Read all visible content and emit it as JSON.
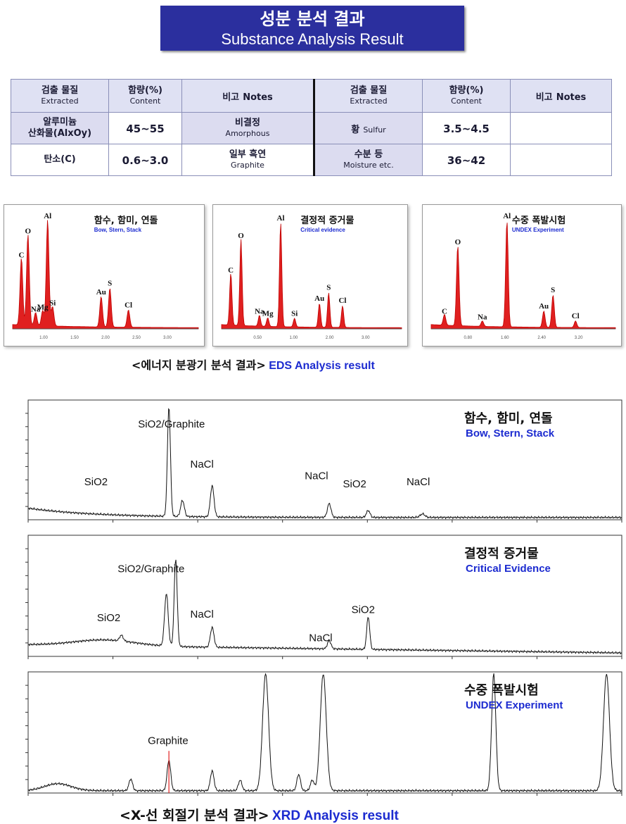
{
  "header": {
    "title_ko": "성분 분석 결과",
    "title_en": "Substance Analysis Result"
  },
  "table": {
    "headers": {
      "extracted_ko": "검출 물질",
      "extracted_en": "Extracted",
      "content_ko": "함량(%)",
      "content_en": "Content",
      "notes_ko": "비고",
      "notes_en": "Notes"
    },
    "rows": [
      {
        "name_ko": "알루미늄",
        "name_ko2": "산화물(AlxOy)",
        "content": "45~55",
        "note_ko": "비결정",
        "note_en": "Amorphous",
        "name2_ko": "황",
        "name2_en": "Sulfur",
        "content2": "3.5~4.5",
        "note2": ""
      },
      {
        "name_ko": "탄소(C)",
        "name_ko2": "",
        "content": "0.6~3.0",
        "note_ko": "일부 흑연",
        "note_en": "Graphite",
        "name2_ko": "수분 등",
        "name2_en": "Moisture etc.",
        "content2": "36~42",
        "note2": ""
      }
    ]
  },
  "eds_caption": {
    "ko": "<에너지 분광기 분석 결과>",
    "en": "EDS Analysis result"
  },
  "xrd_caption": {
    "ko": "<X-선 회절기 분석 결과>",
    "en": "XRD Analysis result"
  },
  "chart_data": [
    {
      "type": "line",
      "id": "eds1",
      "title_ko": "함수, 함미, 연돌",
      "title_en": "Bow, Stern, Stack",
      "tick_labels": [
        "1.00",
        "1.50",
        "2.00",
        "2.50",
        "3.00"
      ],
      "peaks": [
        {
          "label": "C",
          "x": 0.16,
          "h": 0.62
        },
        {
          "label": "O",
          "x": 0.28,
          "h": 0.84
        },
        {
          "label": "Na",
          "x": 0.42,
          "h": 0.12
        },
        {
          "label": "Mg",
          "x": 0.55,
          "h": 0.14
        },
        {
          "label": "Al",
          "x": 0.64,
          "h": 0.98
        },
        {
          "label": "Si",
          "x": 0.73,
          "h": 0.18
        },
        {
          "label": "Au",
          "x": 1.62,
          "h": 0.28
        },
        {
          "label": "S",
          "x": 1.78,
          "h": 0.36
        },
        {
          "label": "Cl",
          "x": 2.12,
          "h": 0.16
        }
      ],
      "xmax": 3.4
    },
    {
      "type": "line",
      "id": "eds2",
      "title_ko": "결정적 증거물",
      "title_en": "Critical evidence",
      "tick_labels": [
        "0.50",
        "1.00",
        "2.00",
        "3.00"
      ],
      "peaks": [
        {
          "label": "C",
          "x": 0.2,
          "h": 0.48
        },
        {
          "label": "O",
          "x": 0.42,
          "h": 0.8
        },
        {
          "label": "Na",
          "x": 0.82,
          "h": 0.1
        },
        {
          "label": "Mg",
          "x": 1.0,
          "h": 0.08
        },
        {
          "label": "Al",
          "x": 1.28,
          "h": 0.96
        },
        {
          "label": "Si",
          "x": 1.58,
          "h": 0.08
        },
        {
          "label": "Au",
          "x": 2.12,
          "h": 0.22
        },
        {
          "label": "S",
          "x": 2.32,
          "h": 0.32
        },
        {
          "label": "Cl",
          "x": 2.62,
          "h": 0.2
        }
      ],
      "xmax": 3.9
    },
    {
      "type": "line",
      "id": "eds3",
      "title_ko": "수중 폭발시험",
      "title_en": "UNDEX Experiment",
      "tick_labels": [
        "0.80",
        "1.60",
        "2.40",
        "3.20"
      ],
      "peaks": [
        {
          "label": "C",
          "x": 0.26,
          "h": 0.1
        },
        {
          "label": "O",
          "x": 0.52,
          "h": 0.74
        },
        {
          "label": "Na",
          "x": 1.0,
          "h": 0.05
        },
        {
          "label": "Al",
          "x": 1.48,
          "h": 0.98
        },
        {
          "label": "Au",
          "x": 2.2,
          "h": 0.15
        },
        {
          "label": "S",
          "x": 2.38,
          "h": 0.3
        },
        {
          "label": "Cl",
          "x": 2.82,
          "h": 0.06
        }
      ],
      "xmax": 3.6
    },
    {
      "type": "line",
      "id": "xrd1",
      "title_ko": "함수, 함미, 연돌",
      "title_en": "Bow, Stern, Stack",
      "xlim": [
        10,
        80
      ],
      "peaks": [
        {
          "x": 26.6,
          "h": 0.95,
          "w": 0.25,
          "label": "SiO2/Graphite"
        },
        {
          "x": 28.2,
          "h": 0.14,
          "w": 0.3
        },
        {
          "x": 31.7,
          "h": 0.27,
          "w": 0.3,
          "label": "NaCl"
        },
        {
          "x": 45.5,
          "h": 0.12,
          "w": 0.3,
          "label": "NaCl"
        },
        {
          "x": 50.1,
          "h": 0.06,
          "w": 0.3,
          "label": "SiO2"
        },
        {
          "x": 56.5,
          "h": 0.03,
          "w": 0.4,
          "label": "NaCl"
        }
      ],
      "labels": [
        {
          "text": "SiO2/Graphite",
          "x": 26.9,
          "y": 0.8
        },
        {
          "text": "SiO2",
          "x": 18.0,
          "y": 0.3
        },
        {
          "text": "NaCl",
          "x": 30.5,
          "y": 0.45
        },
        {
          "text": "NaCl",
          "x": 44.0,
          "y": 0.35
        },
        {
          "text": "SiO2",
          "x": 48.5,
          "y": 0.28
        },
        {
          "text": "NaCl",
          "x": 56.0,
          "y": 0.3
        }
      ]
    },
    {
      "type": "line",
      "id": "xrd2",
      "title_ko": "결정적 증거물",
      "title_en": "Critical Evidence",
      "xlim": [
        10,
        80
      ],
      "peaks": [
        {
          "x": 21.0,
          "h": 0.05,
          "w": 0.3
        },
        {
          "x": 26.3,
          "h": 0.45,
          "w": 0.3
        },
        {
          "x": 27.4,
          "h": 0.75,
          "w": 0.25
        },
        {
          "x": 31.7,
          "h": 0.17,
          "w": 0.3
        },
        {
          "x": 45.5,
          "h": 0.07,
          "w": 0.3
        },
        {
          "x": 50.1,
          "h": 0.28,
          "w": 0.25
        }
      ],
      "labels": [
        {
          "text": "SiO2/Graphite",
          "x": 24.5,
          "y": 0.72
        },
        {
          "text": "SiO2",
          "x": 19.5,
          "y": 0.3
        },
        {
          "text": "NaCl",
          "x": 30.5,
          "y": 0.33
        },
        {
          "text": "NaCl",
          "x": 44.5,
          "y": 0.13
        },
        {
          "text": "SiO2",
          "x": 49.5,
          "y": 0.37
        }
      ]
    },
    {
      "type": "line",
      "id": "xrd3",
      "title_ko": "수중 폭발시험",
      "title_en": "UNDEX Experiment",
      "xlim": [
        10,
        80
      ],
      "peaks": [
        {
          "x": 22.1,
          "h": 0.1,
          "w": 0.3
        },
        {
          "x": 26.6,
          "h": 0.26,
          "w": 0.3
        },
        {
          "x": 31.7,
          "h": 0.17,
          "w": 0.3
        },
        {
          "x": 35.0,
          "h": 0.09,
          "w": 0.3
        },
        {
          "x": 38.0,
          "h": 1.0,
          "w": 0.5
        },
        {
          "x": 41.9,
          "h": 0.14,
          "w": 0.3
        },
        {
          "x": 43.5,
          "h": 0.09,
          "w": 0.3
        },
        {
          "x": 44.8,
          "h": 1.0,
          "w": 0.5
        },
        {
          "x": 64.9,
          "h": 1.0,
          "w": 0.35
        },
        {
          "x": 78.2,
          "h": 1.0,
          "w": 0.5
        }
      ],
      "labels": [
        {
          "text": "Graphite",
          "x": 26.5,
          "y": 0.42
        }
      ]
    }
  ]
}
